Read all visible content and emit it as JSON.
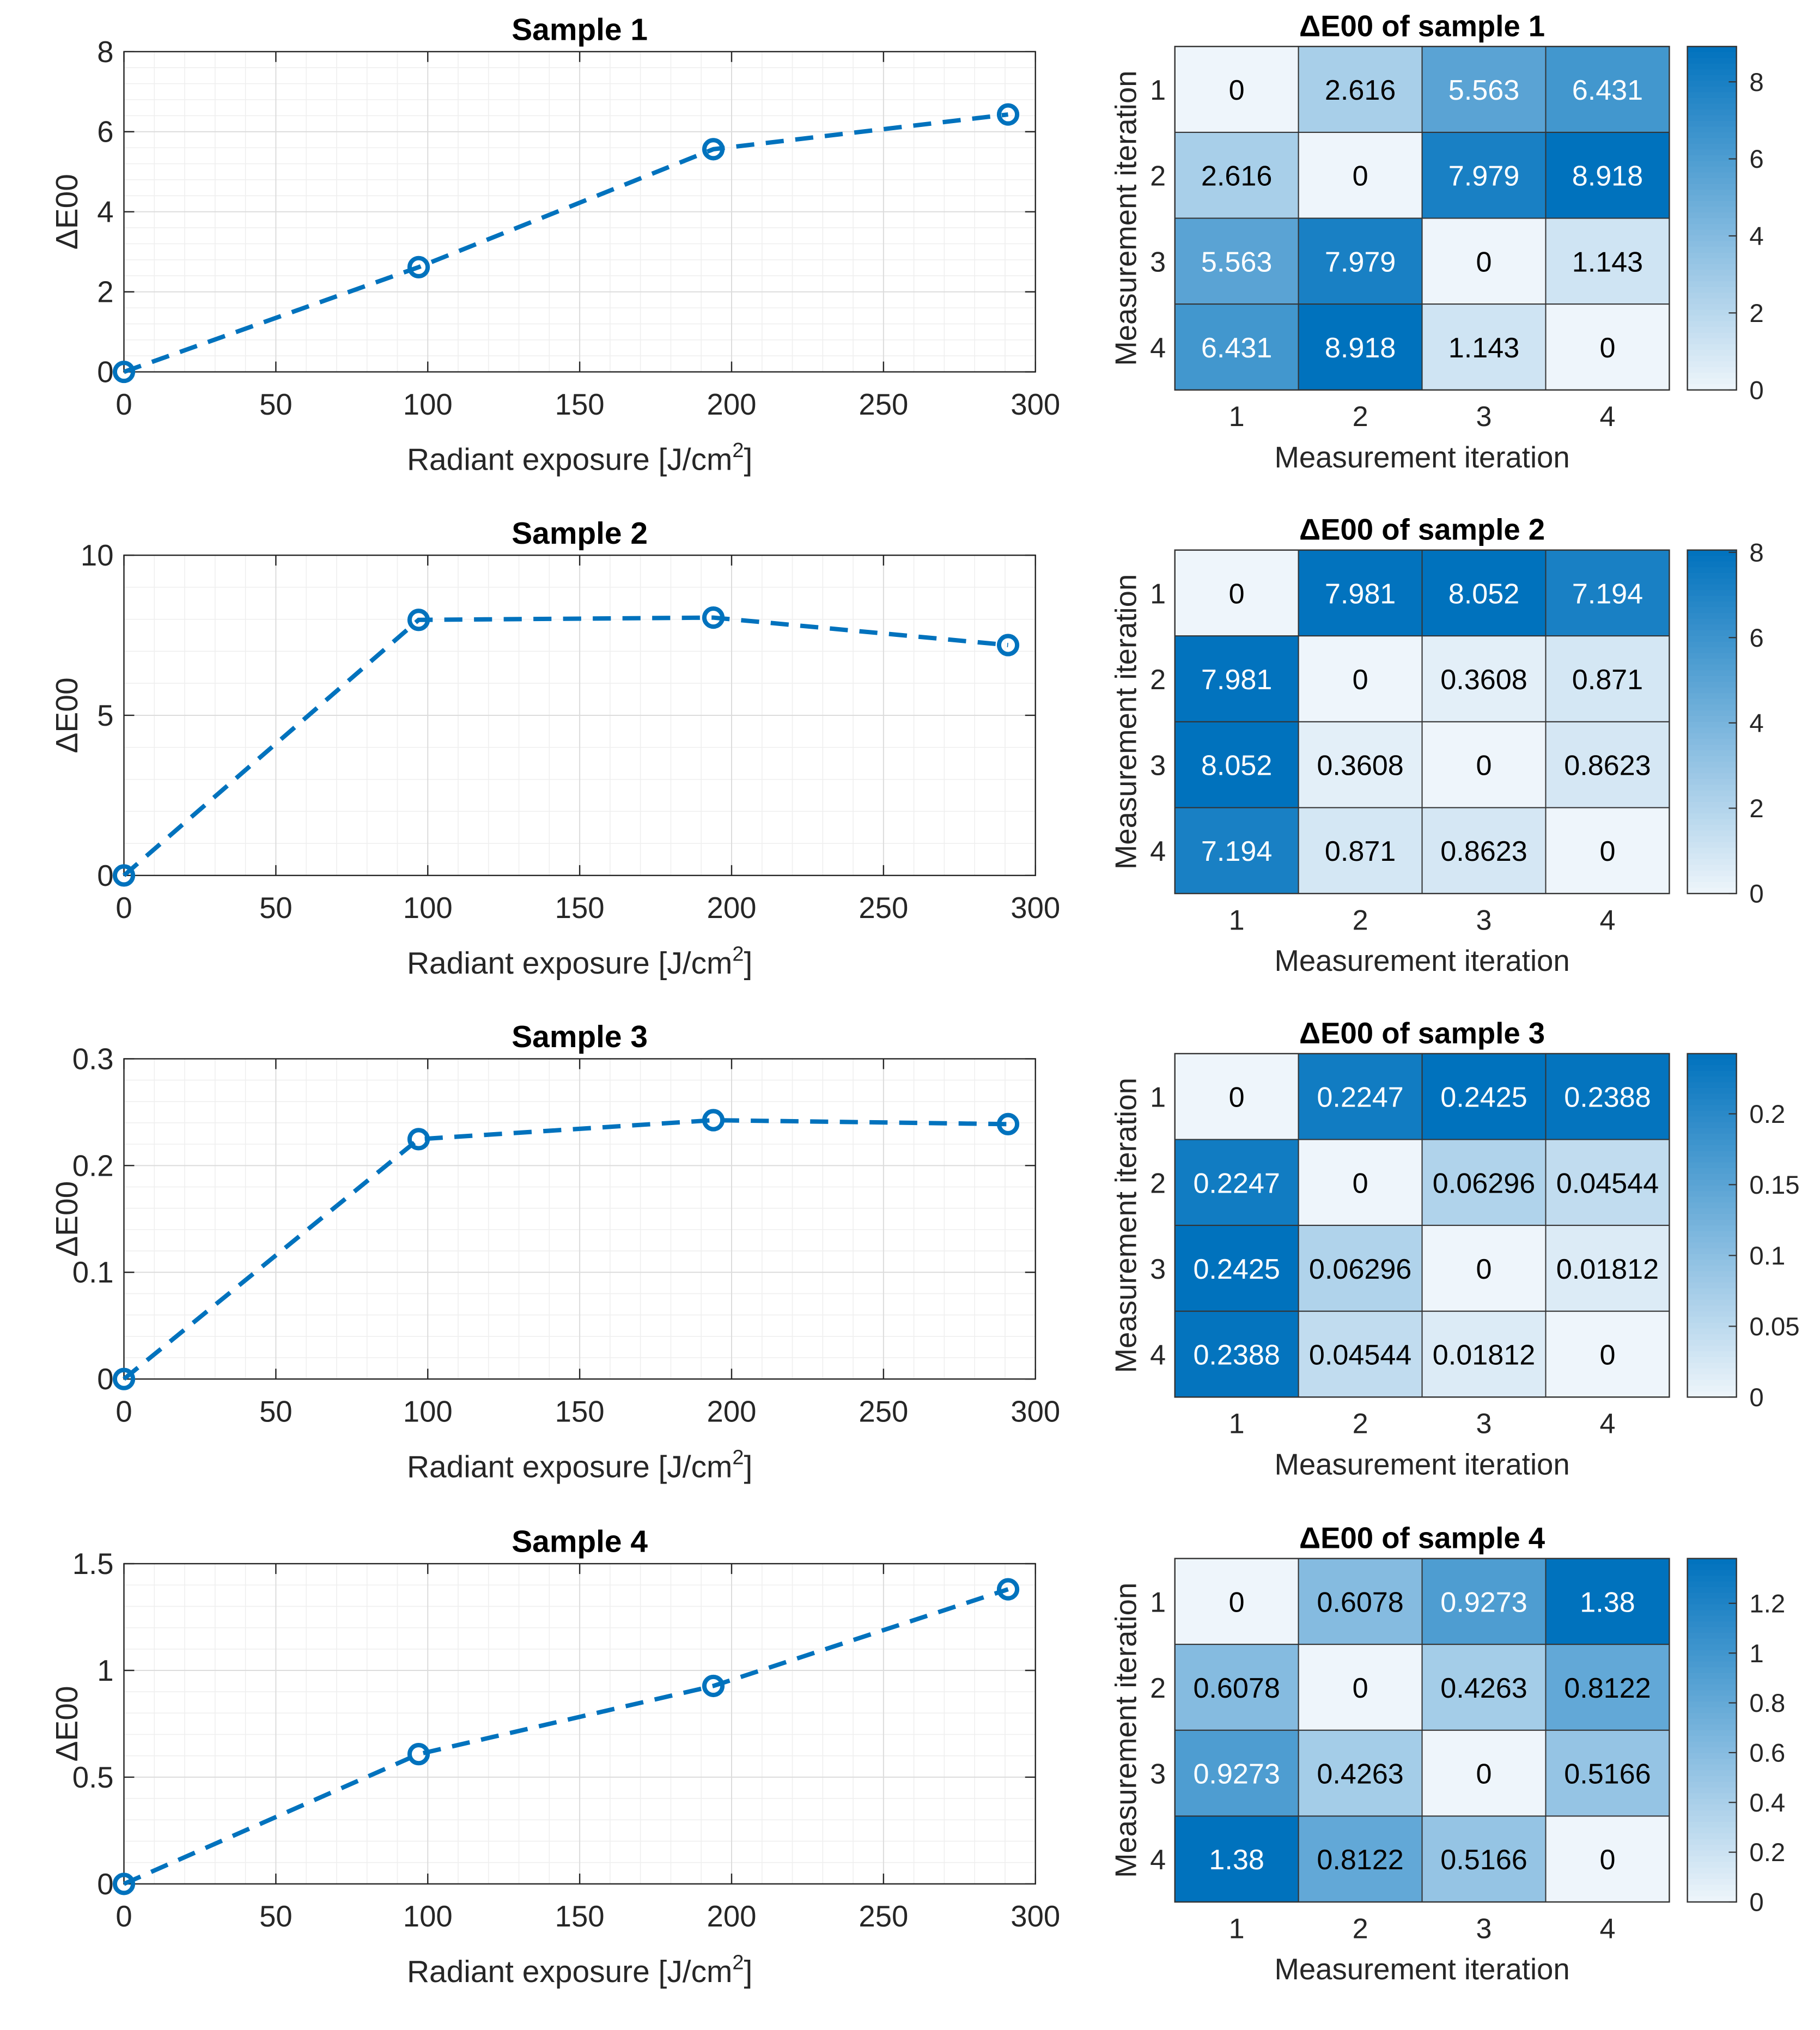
{
  "colors": {
    "line": "#0072BD",
    "axis": "#262626",
    "grid_major": "#dcdcdc",
    "grid_minor": "#efefef",
    "heat_low": "#eef5fb",
    "heat_high": "#0072BD"
  },
  "chart_data": [
    {
      "type": "line",
      "title": "Sample 1",
      "xlabel": "Radiant exposure [J/cm",
      "xlabel_sup": "2",
      "xlabel_end": "]",
      "ylabel": "ΔE00",
      "x": [
        0,
        97,
        194,
        291
      ],
      "y": [
        0,
        2.616,
        5.563,
        6.431
      ],
      "xlim": [
        0,
        300
      ],
      "ylim": [
        0,
        8
      ],
      "xticks": [
        0,
        50,
        100,
        150,
        200,
        250,
        300
      ],
      "xtick_labels": [
        "0",
        "50",
        "100",
        "150",
        "200",
        "250",
        "300"
      ],
      "yticks": [
        0,
        2,
        4,
        6,
        8
      ],
      "ytick_labels": [
        "0",
        "2",
        "4",
        "6",
        "8"
      ],
      "grid": true
    },
    {
      "type": "heatmap",
      "title": "ΔE00 of sample 1",
      "xlabel": "Measurement iteration",
      "ylabel": "Measurement iteration",
      "categories": [
        "1",
        "2",
        "3",
        "4"
      ],
      "values": [
        [
          0,
          2.616,
          5.563,
          6.431
        ],
        [
          2.616,
          0,
          7.979,
          8.918
        ],
        [
          5.563,
          7.979,
          0,
          1.143
        ],
        [
          6.431,
          8.918,
          1.143,
          0
        ]
      ],
      "labels": [
        [
          "0",
          "2.616",
          "5.563",
          "6.431"
        ],
        [
          "2.616",
          "0",
          "7.979",
          "8.918"
        ],
        [
          "5.563",
          "7.979",
          "0",
          "1.143"
        ],
        [
          "6.431",
          "8.918",
          "1.143",
          "0"
        ]
      ],
      "clim": [
        0,
        8.918
      ],
      "colorbar_ticks": [
        0,
        2,
        4,
        6,
        8
      ],
      "colorbar_labels": [
        "0",
        "2",
        "4",
        "6",
        "8"
      ]
    },
    {
      "type": "line",
      "title": "Sample 2",
      "xlabel": "Radiant exposure [J/cm",
      "xlabel_sup": "2",
      "xlabel_end": "]",
      "ylabel": "ΔE00",
      "x": [
        0,
        97,
        194,
        291
      ],
      "y": [
        0,
        7.981,
        8.052,
        7.194
      ],
      "xlim": [
        0,
        300
      ],
      "ylim": [
        0,
        10
      ],
      "xticks": [
        0,
        50,
        100,
        150,
        200,
        250,
        300
      ],
      "xtick_labels": [
        "0",
        "50",
        "100",
        "150",
        "200",
        "250",
        "300"
      ],
      "yticks": [
        0,
        5,
        10
      ],
      "ytick_labels": [
        "0",
        "5",
        "10"
      ],
      "grid": true
    },
    {
      "type": "heatmap",
      "title": "ΔE00 of sample 2",
      "xlabel": "Measurement iteration",
      "ylabel": "Measurement iteration",
      "categories": [
        "1",
        "2",
        "3",
        "4"
      ],
      "values": [
        [
          0,
          7.981,
          8.052,
          7.194
        ],
        [
          7.981,
          0,
          0.3608,
          0.871
        ],
        [
          8.052,
          0.3608,
          0,
          0.8623
        ],
        [
          7.194,
          0.871,
          0.8623,
          0
        ]
      ],
      "labels": [
        [
          "0",
          "7.981",
          "8.052",
          "7.194"
        ],
        [
          "7.981",
          "0",
          "0.3608",
          "0.871"
        ],
        [
          "8.052",
          "0.3608",
          "0",
          "0.8623"
        ],
        [
          "7.194",
          "0.871",
          "0.8623",
          "0"
        ]
      ],
      "clim": [
        0,
        8.052
      ],
      "colorbar_ticks": [
        0,
        2,
        4,
        6,
        8
      ],
      "colorbar_labels": [
        "0",
        "2",
        "4",
        "6",
        "8"
      ]
    },
    {
      "type": "line",
      "title": "Sample 3",
      "xlabel": "Radiant exposure [J/cm",
      "xlabel_sup": "2",
      "xlabel_end": "]",
      "ylabel": "ΔE00",
      "x": [
        0,
        97,
        194,
        291
      ],
      "y": [
        0,
        0.2247,
        0.2425,
        0.2388
      ],
      "xlim": [
        0,
        300
      ],
      "ylim": [
        0,
        0.3
      ],
      "xticks": [
        0,
        50,
        100,
        150,
        200,
        250,
        300
      ],
      "xtick_labels": [
        "0",
        "50",
        "100",
        "150",
        "200",
        "250",
        "300"
      ],
      "yticks": [
        0,
        0.1,
        0.2,
        0.3
      ],
      "ytick_labels": [
        "0",
        "0.1",
        "0.2",
        "0.3"
      ],
      "grid": true
    },
    {
      "type": "heatmap",
      "title": "ΔE00 of sample 3",
      "xlabel": "Measurement iteration",
      "ylabel": "Measurement iteration",
      "categories": [
        "1",
        "2",
        "3",
        "4"
      ],
      "values": [
        [
          0,
          0.2247,
          0.2425,
          0.2388
        ],
        [
          0.2247,
          0,
          0.06296,
          0.04544
        ],
        [
          0.2425,
          0.06296,
          0,
          0.01812
        ],
        [
          0.2388,
          0.04544,
          0.01812,
          0
        ]
      ],
      "labels": [
        [
          "0",
          "0.2247",
          "0.2425",
          "0.2388"
        ],
        [
          "0.2247",
          "0",
          "0.06296",
          "0.04544"
        ],
        [
          "0.2425",
          "0.06296",
          "0",
          "0.01812"
        ],
        [
          "0.2388",
          "0.04544",
          "0.01812",
          "0"
        ]
      ],
      "clim": [
        0,
        0.2425
      ],
      "colorbar_ticks": [
        0,
        0.05,
        0.1,
        0.15,
        0.2
      ],
      "colorbar_labels": [
        "0",
        "0.05",
        "0.1",
        "0.15",
        "0.2"
      ]
    },
    {
      "type": "line",
      "title": "Sample 4",
      "xlabel": "Radiant exposure [J/cm",
      "xlabel_sup": "2",
      "xlabel_end": "]",
      "ylabel": "ΔE00",
      "x": [
        0,
        97,
        194,
        291
      ],
      "y": [
        0,
        0.6078,
        0.9273,
        1.38
      ],
      "xlim": [
        0,
        300
      ],
      "ylim": [
        0,
        1.5
      ],
      "xticks": [
        0,
        50,
        100,
        150,
        200,
        250,
        300
      ],
      "xtick_labels": [
        "0",
        "50",
        "100",
        "150",
        "200",
        "250",
        "300"
      ],
      "yticks": [
        0,
        0.5,
        1,
        1.5
      ],
      "ytick_labels": [
        "0",
        "0.5",
        "1",
        "1.5"
      ],
      "grid": true
    },
    {
      "type": "heatmap",
      "title": "ΔE00 of sample 4",
      "xlabel": "Measurement iteration",
      "ylabel": "Measurement iteration",
      "categories": [
        "1",
        "2",
        "3",
        "4"
      ],
      "values": [
        [
          0,
          0.6078,
          0.9273,
          1.38
        ],
        [
          0.6078,
          0,
          0.4263,
          0.8122
        ],
        [
          0.9273,
          0.4263,
          0,
          0.5166
        ],
        [
          1.38,
          0.8122,
          0.5166,
          0
        ]
      ],
      "labels": [
        [
          "0",
          "0.6078",
          "0.9273",
          "1.38"
        ],
        [
          "0.6078",
          "0",
          "0.4263",
          "0.8122"
        ],
        [
          "0.9273",
          "0.4263",
          "0",
          "0.5166"
        ],
        [
          "1.38",
          "0.8122",
          "0.5166",
          "0"
        ]
      ],
      "clim": [
        0,
        1.38
      ],
      "colorbar_ticks": [
        0,
        0.2,
        0.4,
        0.6,
        0.8,
        1,
        1.2
      ],
      "colorbar_labels": [
        "0",
        "0.2",
        "0.4",
        "0.6",
        "0.8",
        "1",
        "1.2"
      ]
    }
  ]
}
